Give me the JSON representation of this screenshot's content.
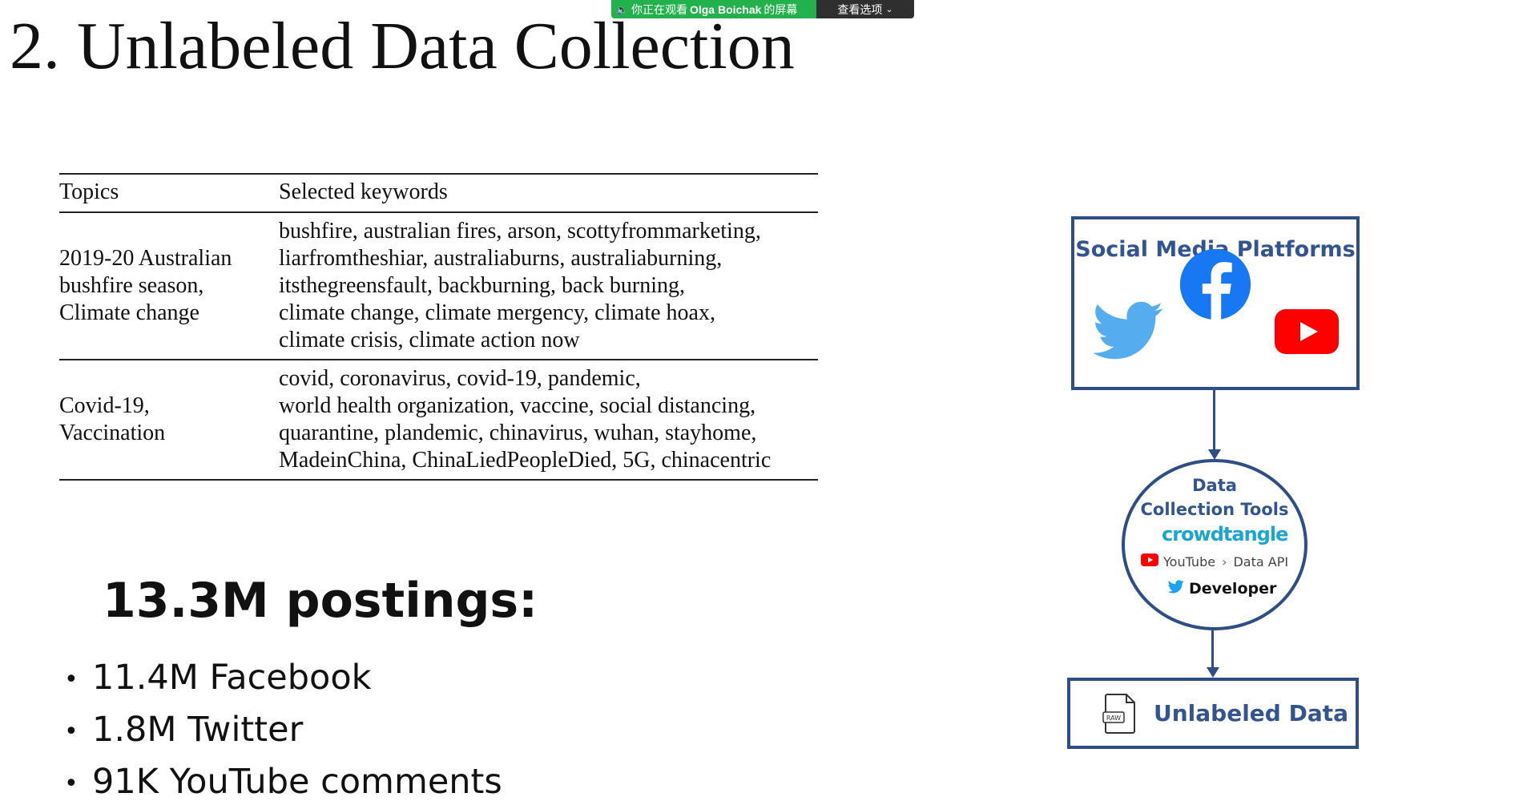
{
  "share_banner": {
    "status_prefix": "你正在观看",
    "presenter": "Olga Boichak",
    "status_suffix": "的屏幕",
    "view_options_label": "查看选项"
  },
  "slide": {
    "title": "2. Unlabeled Data Collection",
    "table": {
      "headers": [
        "Topics",
        "Selected keywords"
      ],
      "rows": [
        {
          "topic_lines": [
            "2019-20 Australian",
            "bushfire season,",
            "Climate change"
          ],
          "keyword_lines": [
            "bushfire, australian fires, arson, scottyfrommarketing,",
            "liarfromtheshiar, australiaburns, australiaburning,",
            "itsthegreensfault, backburning, back burning,",
            "climate change, climate mergency, climate hoax,",
            "climate crisis, climate action now"
          ]
        },
        {
          "topic_lines": [
            "Covid-19,",
            "Vaccination"
          ],
          "keyword_lines": [
            "covid, coronavirus, covid-19, pandemic,",
            "world health organization, vaccine, social distancing,",
            "quarantine, plandemic, chinavirus, wuhan, stayhome,",
            "MadeinChina, ChinaLiedPeopleDied, 5G, chinacentric"
          ]
        }
      ]
    },
    "postings": {
      "title": "13.3M postings:",
      "items": [
        "11.4M Facebook",
        "1.8M Twitter",
        "91K YouTube comments"
      ]
    },
    "diagram": {
      "platforms_title": "Social Media Platforms",
      "platform_icons": [
        "twitter-icon",
        "facebook-icon",
        "youtube-icon"
      ],
      "tools_title_line1": "Data",
      "tools_title_line2": "Collection Tools",
      "crowdtangle_label": "crowdtangle",
      "youtube_label": "YouTube",
      "api_label": "Data API",
      "developer_label": "Developer",
      "output_label": "Unlabeled Data",
      "raw_file_label": "RAW"
    }
  },
  "colors": {
    "diagram_blue": "#2f4d86",
    "diagram_text": "#34548f",
    "twitter": "#55acee",
    "facebook": "#1877f2",
    "youtube": "#ff0000",
    "crowdtangle": "#1aa6cf",
    "share_green": "#22b14c"
  }
}
